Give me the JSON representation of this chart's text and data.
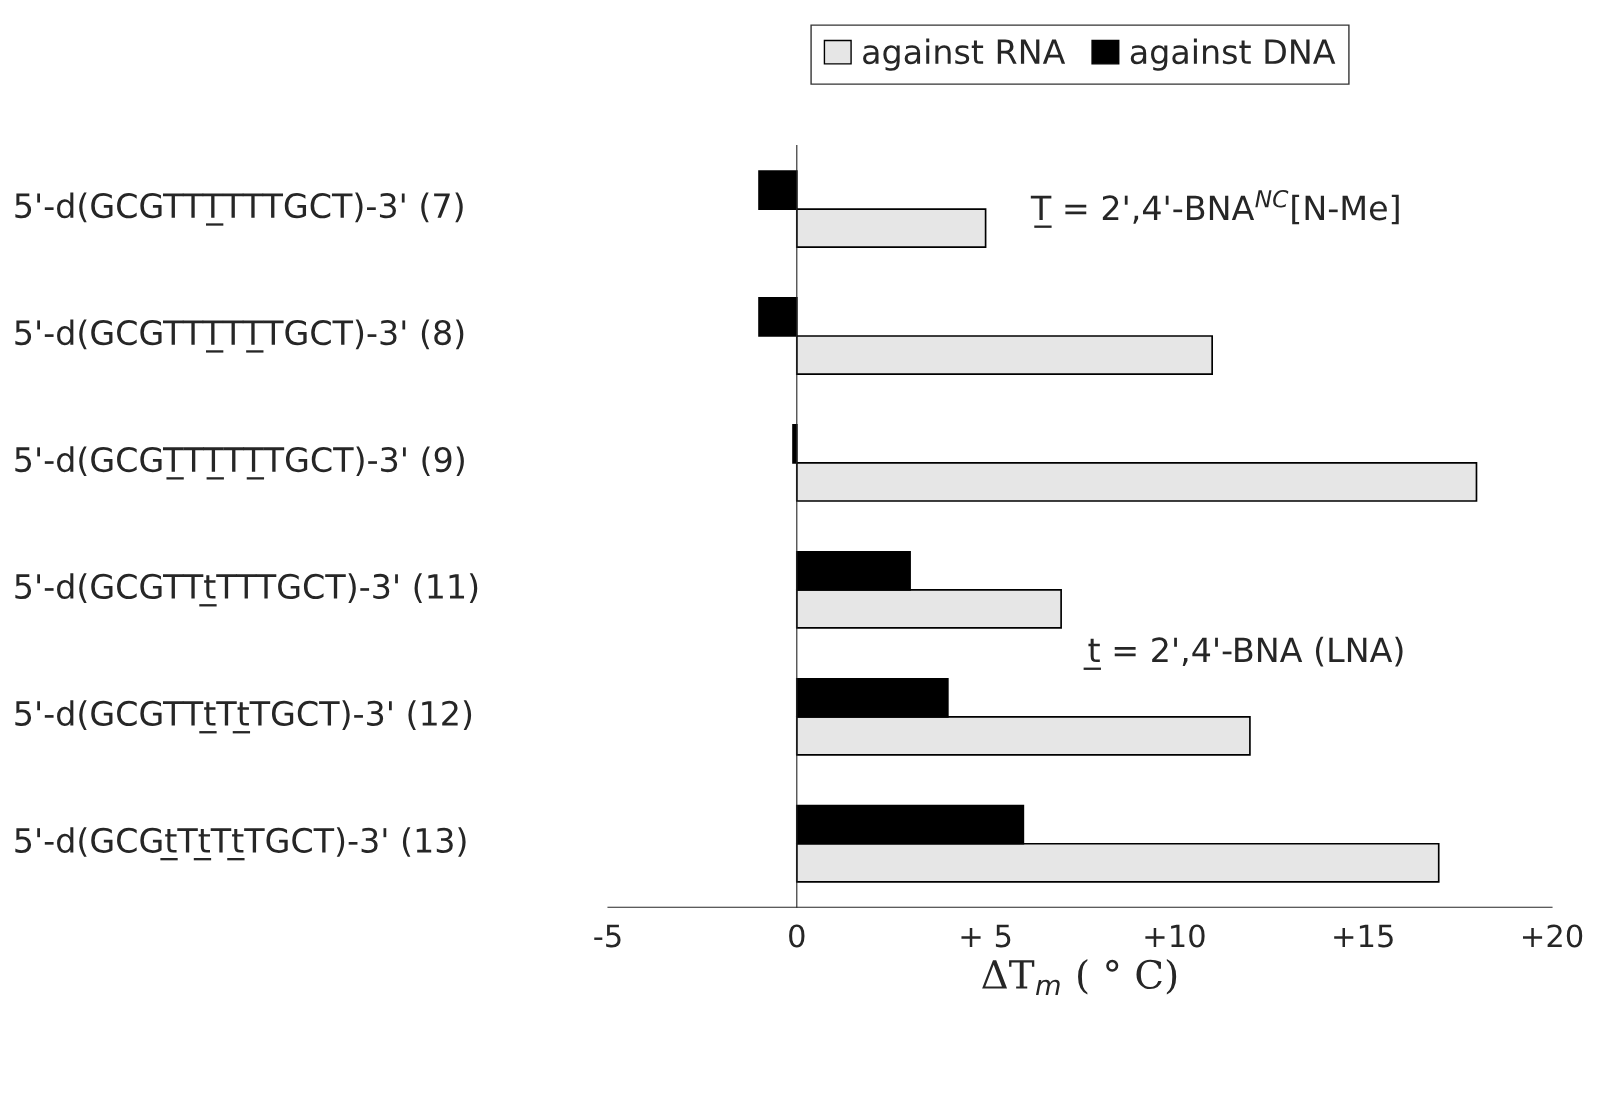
{
  "chart_data": {
    "type": "bar",
    "orientation": "horizontal",
    "xlabel": "ΔT$_{m}$ ( ° C)",
    "categories": [
      "5'-d(GCGTTT̲TTTGCT)-3' (7)",
      "5'-d(GCGTTT̲TT̲TGCT)-3' (8)",
      "5'-d(GCGT̲TT̲TT̲TGCT)-3' (9)",
      "5'-d(GCGTTt̲TTTGCT)-3' (11)",
      "5'-d(GCGTTt̲Tt̲TGCT)-3' (12)",
      "5'-d(GCGt̲Tt̲Tt̲TGCT)-3' (13)"
    ],
    "series": [
      {
        "name": "against RNA",
        "color": "#e6e6e6",
        "values": [
          5,
          11,
          18,
          7,
          12,
          17
        ]
      },
      {
        "name": "against DNA",
        "color": "#000000",
        "values": [
          -1,
          -1,
          -0.1,
          3,
          4,
          6
        ]
      }
    ],
    "xlim": [
      -5,
      20
    ],
    "xticks": [
      {
        "value": -5,
        "label": "-5"
      },
      {
        "value": 0,
        "label": "0"
      },
      {
        "value": 5,
        "label": "+ 5"
      },
      {
        "value": 10,
        "label": "+10"
      },
      {
        "value": 15,
        "label": "+15"
      },
      {
        "value": 20,
        "label": "+20"
      }
    ],
    "annotations": [
      "T̲ = 2',4'-BNA$^{NC}$[N-Me]",
      "t̲ = 2',4'-BNA (LNA)"
    ],
    "legend": "top"
  }
}
